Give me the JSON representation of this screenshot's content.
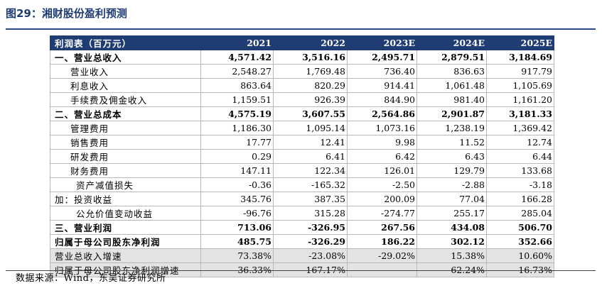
{
  "figure": {
    "title": "图29：湘财股份盈利预测"
  },
  "table": {
    "header": {
      "label": "利润表（百万元）",
      "years": [
        "2021",
        "2022",
        "2023E",
        "2024E",
        "2025E"
      ]
    },
    "rows": [
      {
        "label": "一、营业总收入",
        "values": [
          "4,571.42",
          "3,516.16",
          "2,495.71",
          "2,879.51",
          "3,184.69"
        ],
        "style": "bold"
      },
      {
        "label": "营业收入",
        "values": [
          "2,548.27",
          "1,769.48",
          "736.40",
          "836.63",
          "917.79"
        ],
        "style": "sub"
      },
      {
        "label": "利息收入",
        "values": [
          "863.64",
          "820.29",
          "914.41",
          "1,061.48",
          "1,105.69"
        ],
        "style": "sub"
      },
      {
        "label": "手续费及佣金收入",
        "values": [
          "1,159.51",
          "926.39",
          "844.90",
          "981.40",
          "1,161.20"
        ],
        "style": "sub"
      },
      {
        "label": "二、营业总成本",
        "values": [
          "4,575.19",
          "3,607.55",
          "2,564.86",
          "2,901.87",
          "3,181.33"
        ],
        "style": "bold"
      },
      {
        "label": "管理费用",
        "values": [
          "1,186.30",
          "1,095.14",
          "1,073.16",
          "1,238.19",
          "1,369.42"
        ],
        "style": "sub"
      },
      {
        "label": "销售费用",
        "values": [
          "17.77",
          "12.41",
          "9.98",
          "11.52",
          "12.74"
        ],
        "style": "sub"
      },
      {
        "label": "研发费用",
        "values": [
          "0.29",
          "6.41",
          "6.42",
          "6.43",
          "6.44"
        ],
        "style": "sub"
      },
      {
        "label": "财务费用",
        "values": [
          "147.11",
          "122.34",
          "126.01",
          "129.79",
          "133.68"
        ],
        "style": "sub"
      },
      {
        "label": "资产减值损失",
        "values": [
          "-0.36",
          "-165.32",
          "-2.50",
          "-2.88",
          "-3.18"
        ],
        "style": "sub2"
      },
      {
        "label": "加：投资收益",
        "values": [
          "345.76",
          "387.35",
          "200.09",
          "77.04",
          "166.28"
        ],
        "style": "plain"
      },
      {
        "label": "公允价值变动收益",
        "values": [
          "-96.76",
          "315.28",
          "-274.77",
          "255.17",
          "285.04"
        ],
        "style": "sub2"
      },
      {
        "label": "三、营业利润",
        "values": [
          "713.06",
          "-326.95",
          "267.56",
          "434.08",
          "506.70"
        ],
        "style": "bold"
      },
      {
        "label": "归属于母公司股东净利润",
        "values": [
          "485.75",
          "-326.29",
          "186.22",
          "302.12",
          "352.66"
        ],
        "style": "bold"
      },
      {
        "label": "营业总收入增速",
        "values": [
          "73.38%",
          "-23.08%",
          "-29.02%",
          "15.38%",
          "10.60%"
        ],
        "style": "grey"
      },
      {
        "label": "归属于母公司股东净利润增速",
        "values": [
          "36.33%",
          "-167.17%",
          "-",
          "62.24%",
          "16.73%"
        ],
        "style": "grey"
      }
    ]
  },
  "source": "数据来源：Wind，东吴证券研究所"
}
